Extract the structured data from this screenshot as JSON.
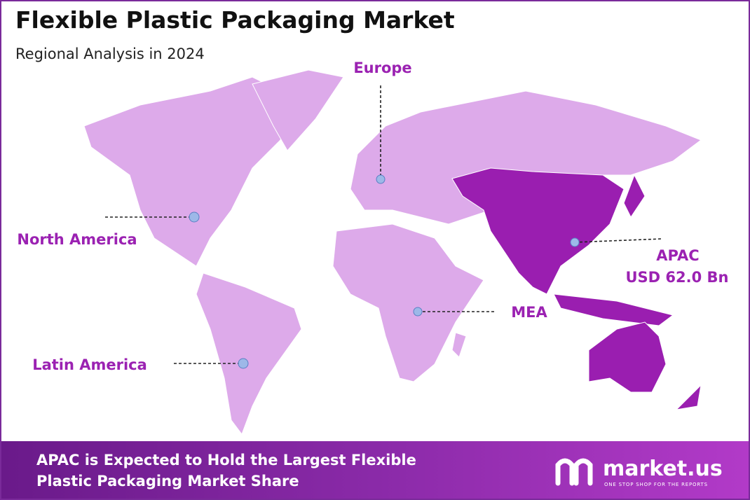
{
  "header": {
    "title": "Flexible Plastic Packaging Market",
    "subtitle": "Regional Analysis in 2024"
  },
  "regions": [
    {
      "label": "Europe"
    },
    {
      "label": "North America"
    },
    {
      "label": "Latin America"
    },
    {
      "label": "MEA"
    }
  ],
  "highlight": {
    "label": "APAC",
    "value": "USD 62.0 Bn"
  },
  "footer": {
    "line1": "APAC is Expected to Hold the Largest Flexible",
    "line2": "Plastic Packaging Market Share"
  },
  "logo": {
    "name": "market.us",
    "tagline": "ONE STOP SHOP FOR THE REPORTS"
  }
}
